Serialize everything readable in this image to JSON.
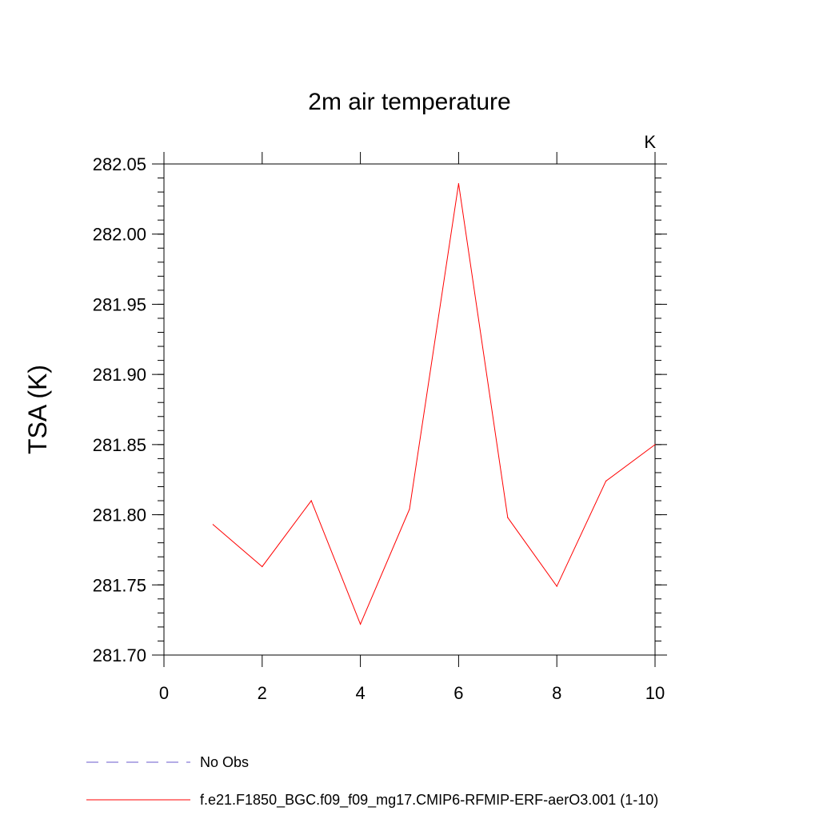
{
  "chart_data": {
    "type": "line",
    "title": "2m air temperature",
    "units_label": "K",
    "xlabel": "",
    "ylabel": "TSA  (K)",
    "xlim": [
      0,
      10
    ],
    "ylim": [
      281.7,
      282.05
    ],
    "xticks": [
      0,
      2,
      4,
      6,
      8,
      10
    ],
    "xtick_labels": [
      "0",
      "2",
      "4",
      "6",
      "8",
      "10"
    ],
    "yticks": [
      281.7,
      281.75,
      281.8,
      281.85,
      281.9,
      281.95,
      282.0,
      282.05
    ],
    "ytick_labels": [
      "281.70",
      "281.75",
      "281.80",
      "281.85",
      "281.90",
      "281.95",
      "282.00",
      "282.05"
    ],
    "grid": false,
    "legend_position": "bottom",
    "series": [
      {
        "name": "f.e21.F1850_BGC.f09_f09_mg17.CMIP6-RFMIP-ERF-aerO3.001 (1-10)",
        "color": "#ff0000",
        "style": "solid",
        "x": [
          1,
          2,
          3,
          4,
          5,
          6,
          7,
          8,
          9,
          10
        ],
        "y": [
          281.793,
          281.763,
          281.81,
          281.722,
          281.804,
          282.036,
          281.798,
          281.749,
          281.824,
          281.85
        ]
      }
    ],
    "legend": [
      {
        "label": "No Obs",
        "color": "#6a5acd",
        "style": "dashed"
      },
      {
        "label": "f.e21.F1850_BGC.f09_f09_mg17.CMIP6-RFMIP-ERF-aerO3.001 (1-10)",
        "color": "#ff0000",
        "style": "solid"
      }
    ]
  }
}
